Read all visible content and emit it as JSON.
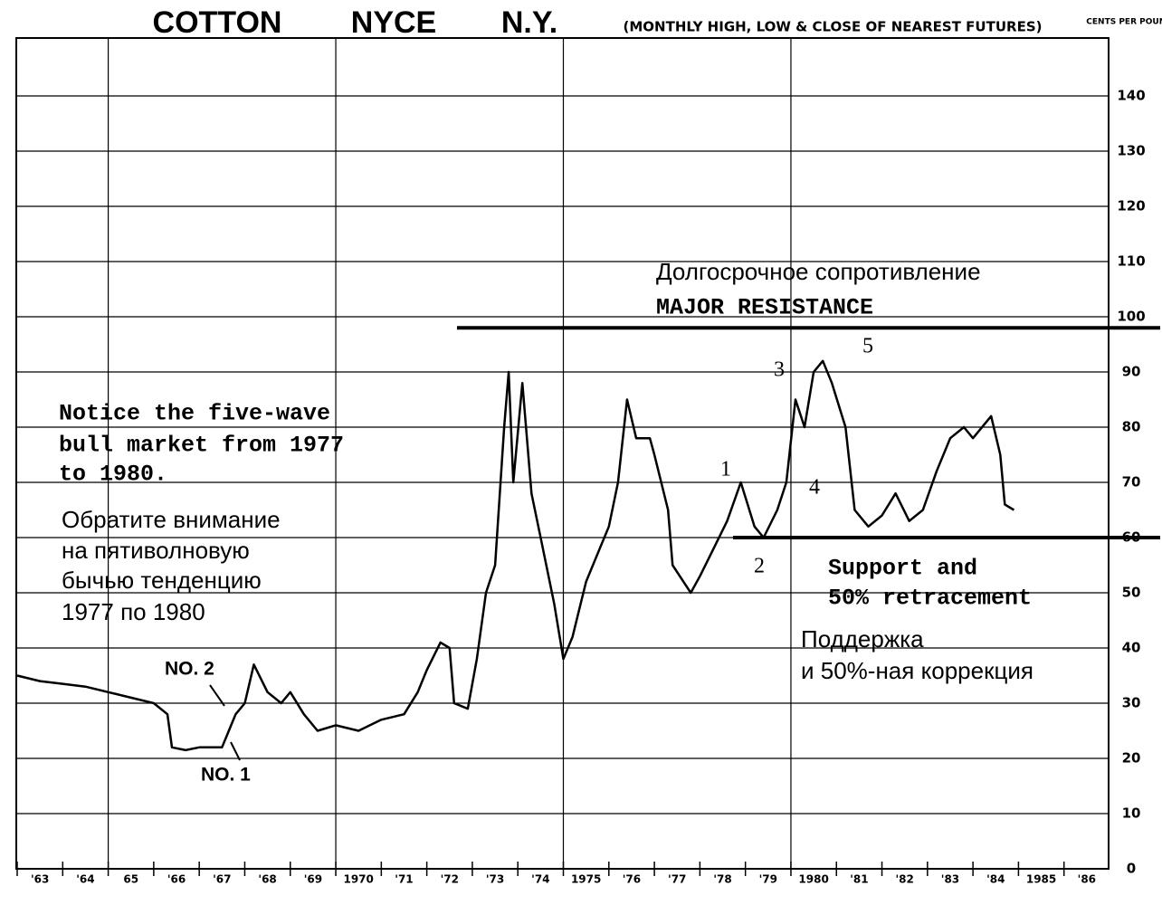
{
  "chart_data": {
    "type": "line",
    "title": [
      "COTTON",
      "NYCE",
      "N.Y."
    ],
    "subtitle": "(MONTHLY HIGH, LOW & CLOSE OF NEAREST FUTURES)",
    "y_axis_label": "CENTS PER POUND",
    "xlim": [
      1963,
      1987
    ],
    "ylim": [
      0,
      150
    ],
    "yticks": [
      0,
      10,
      20,
      30,
      40,
      50,
      60,
      70,
      80,
      90,
      100,
      110,
      120,
      130,
      140
    ],
    "xticks": [
      {
        "value": 1963,
        "label": "'63"
      },
      {
        "value": 1964,
        "label": "'64"
      },
      {
        "value": 1965,
        "label": "65"
      },
      {
        "value": 1966,
        "label": "'66"
      },
      {
        "value": 1967,
        "label": "'67"
      },
      {
        "value": 1968,
        "label": "'68"
      },
      {
        "value": 1969,
        "label": "'69"
      },
      {
        "value": 1970,
        "label": "1970"
      },
      {
        "value": 1971,
        "label": "'71"
      },
      {
        "value": 1972,
        "label": "'72"
      },
      {
        "value": 1973,
        "label": "'73"
      },
      {
        "value": 1974,
        "label": "'74"
      },
      {
        "value": 1975,
        "label": "1975"
      },
      {
        "value": 1976,
        "label": "'76"
      },
      {
        "value": 1977,
        "label": "'77"
      },
      {
        "value": 1978,
        "label": "'78"
      },
      {
        "value": 1979,
        "label": "'79"
      },
      {
        "value": 1980,
        "label": "1980"
      },
      {
        "value": 1981,
        "label": "'81"
      },
      {
        "value": 1982,
        "label": "'82"
      },
      {
        "value": 1983,
        "label": "'83"
      },
      {
        "value": 1984,
        "label": "'84"
      },
      {
        "value": 1985,
        "label": "1985"
      },
      {
        "value": 1986,
        "label": "'86"
      }
    ],
    "xgrid": [
      1965,
      1970,
      1975,
      1980
    ],
    "grid": true,
    "resistance": 98,
    "support": 60,
    "series": [
      {
        "color": "#000000",
        "x": [
          1963.0,
          1963.5,
          1964.0,
          1964.5,
          1965.0,
          1965.5,
          1966.0,
          1966.3,
          1966.4,
          1966.7,
          1967.0,
          1967.5,
          1967.8,
          1968.0,
          1968.2,
          1968.5,
          1968.8,
          1969.0,
          1969.3,
          1969.6,
          1970.0,
          1970.5,
          1971.0,
          1971.5,
          1971.8,
          1972.0,
          1972.3,
          1972.5,
          1972.6,
          1972.9,
          1973.1,
          1973.3,
          1973.5,
          1973.7,
          1973.8,
          1973.9,
          1974.1,
          1974.3,
          1974.5,
          1974.8,
          1975.0,
          1975.2,
          1975.5,
          1975.8,
          1976.0,
          1976.2,
          1976.4,
          1976.6,
          1976.9,
          1977.0,
          1977.3,
          1977.4,
          1977.8,
          1978.0,
          1978.3,
          1978.6,
          1978.9,
          1979.2,
          1979.4,
          1979.7,
          1979.9,
          1980.1,
          1980.3,
          1980.5,
          1980.7,
          1980.9,
          1981.2,
          1981.4,
          1981.7,
          1982.0,
          1982.3,
          1982.6,
          1982.9,
          1983.2,
          1983.5,
          1983.8,
          1984.0,
          1984.4,
          1984.6,
          1984.7,
          1984.9
        ],
        "values": [
          35,
          34,
          33.5,
          33,
          32,
          31,
          30,
          28,
          22,
          21.5,
          22,
          22,
          28,
          30,
          37,
          32,
          30,
          32,
          28,
          25,
          26,
          25,
          27,
          28,
          32,
          36,
          41,
          40,
          30,
          29,
          38,
          50,
          55,
          80,
          90,
          70,
          88,
          68,
          60,
          48,
          38,
          42,
          52,
          58,
          62,
          70,
          85,
          78,
          78,
          75,
          65,
          55,
          50,
          53,
          58,
          63,
          70,
          62,
          60,
          65,
          70,
          85,
          80,
          90,
          92,
          88,
          80,
          65,
          62,
          64,
          68,
          63,
          65,
          72,
          78,
          80,
          78,
          82,
          75,
          66,
          65
        ]
      }
    ],
    "annotations": [
      "Долгосрочное сопротивление",
      "MAJOR RESISTANCE",
      "Notice the five-wave",
      "bull market from 1977",
      "to 1980.",
      "Обратите внимание",
      "на пятиволновую",
      "бычью тенденцию",
      "1977 по 1980",
      "Support and",
      "50% retracement",
      "Поддержка",
      "и 50%-ная коррекция",
      "NO. 2",
      "NO. 1",
      "1",
      "2",
      "3",
      "4",
      "5"
    ]
  }
}
